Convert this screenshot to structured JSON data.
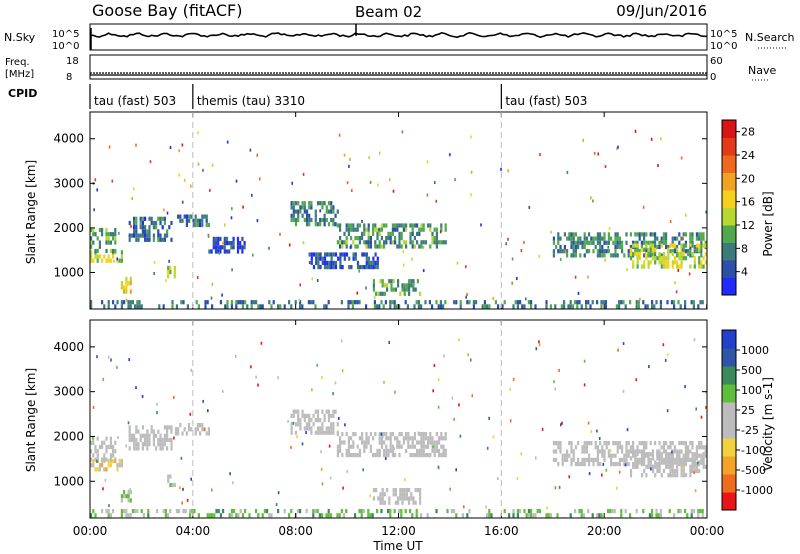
{
  "header": {
    "station": "Goose Bay (fitACF)",
    "beam": "Beam 02",
    "date": "09/Jun/2016"
  },
  "panels": {
    "nsky": {
      "label": "N.Sky",
      "ticks_left": [
        "10^5",
        "10^0"
      ],
      "ticks_right": [
        "10^5",
        "10^0"
      ],
      "right_label": "N.Search"
    },
    "freq": {
      "label_line1": "Freq.",
      "label_line2": "[MHz]",
      "ticks_left": [
        "18",
        "8"
      ],
      "ticks_right": [
        "60",
        "0"
      ],
      "right_label": "Nave"
    },
    "cpid": {
      "label": "CPID",
      "segments": [
        {
          "name": "tau (fast) 503",
          "start_hour": 0
        },
        {
          "name": "themis (tau) 3310",
          "start_hour": 4.0
        },
        {
          "name": "tau (fast) 503",
          "start_hour": 16.0
        }
      ]
    }
  },
  "x_axis": {
    "title": "Time UT",
    "ticks": [
      "00:00",
      "04:00",
      "08:00",
      "12:00",
      "16:00",
      "20:00",
      "00:00"
    ],
    "tick_hours": [
      0,
      4,
      8,
      12,
      16,
      20,
      24
    ],
    "mode_change_hours": [
      4.0,
      16.0
    ]
  },
  "colors": {
    "power": [
      "#1f2bff",
      "#2c4fa8",
      "#3d7a7c",
      "#52a84e",
      "#b7d732",
      "#f4d11c",
      "#f0a220",
      "#ed6a1c",
      "#e33a1a",
      "#d81414"
    ],
    "velocity": [
      "#e81616",
      "#ef6c1e",
      "#f3a428",
      "#f0d23c",
      "#bcbcbc",
      "#bcbcbc",
      "#5fbf3a",
      "#3a8a5a",
      "#2f55a8",
      "#2240c8"
    ]
  },
  "chart_data": [
    {
      "type": "heatmap",
      "name": "power",
      "ylabel": "Slant Range [km]",
      "yticks": [
        1000,
        2000,
        3000,
        4000
      ],
      "ylim": [
        180,
        4600
      ],
      "xlim_hours": [
        0,
        24
      ],
      "colorbar": {
        "label": "Power [dB]",
        "ticks": [
          4,
          8,
          12,
          16,
          20,
          24,
          28
        ],
        "range": [
          0,
          30
        ]
      },
      "echo_bands": [
        {
          "t0": 0.0,
          "t1": 1.2,
          "r0": 1250,
          "r1": 1500,
          "value": 14
        },
        {
          "t0": 0.0,
          "t1": 1.0,
          "r0": 1500,
          "r1": 2000,
          "value": 10
        },
        {
          "t0": 1.2,
          "t1": 1.6,
          "r0": 600,
          "r1": 900,
          "value": 16
        },
        {
          "t0": 3.0,
          "t1": 3.3,
          "r0": 950,
          "r1": 1150,
          "value": 14
        },
        {
          "t0": 1.5,
          "t1": 3.2,
          "r0": 1750,
          "r1": 2250,
          "value": 6
        },
        {
          "t0": 3.3,
          "t1": 4.6,
          "r0": 2100,
          "r1": 2300,
          "value": 6
        },
        {
          "t0": 4.6,
          "t1": 6.0,
          "r0": 1450,
          "r1": 1800,
          "value": 4
        },
        {
          "t0": 7.8,
          "t1": 9.6,
          "r0": 2050,
          "r1": 2600,
          "value": 8
        },
        {
          "t0": 9.6,
          "t1": 13.8,
          "r0": 1550,
          "r1": 2100,
          "value": 9
        },
        {
          "t0": 8.5,
          "t1": 11.2,
          "r0": 1150,
          "r1": 1450,
          "value": 5
        },
        {
          "t0": 11.0,
          "t1": 12.8,
          "r0": 550,
          "r1": 850,
          "value": 10
        },
        {
          "t0": 18.0,
          "t1": 24.0,
          "r0": 1350,
          "r1": 1900,
          "value": 8
        },
        {
          "t0": 21.0,
          "t1": 24.0,
          "r0": 1150,
          "r1": 1650,
          "value": 14
        },
        {
          "t0": 0.0,
          "t1": 24.0,
          "r0": 180,
          "r1": 380,
          "value": 7
        }
      ]
    },
    {
      "type": "heatmap",
      "name": "velocity",
      "ylabel": "Slant Range [km]",
      "yticks": [
        1000,
        2000,
        3000,
        4000
      ],
      "ylim": [
        180,
        4600
      ],
      "xlim_hours": [
        0,
        24
      ],
      "colorbar": {
        "label": "Velocity [m s-1]",
        "ticks": [
          -1000,
          -500,
          -100,
          -25,
          25,
          100,
          500,
          1000
        ],
        "range": [
          -1200,
          1200
        ]
      },
      "echo_bands": [
        {
          "t0": 0.0,
          "t1": 1.2,
          "r0": 1250,
          "r1": 1500,
          "value": -300
        },
        {
          "t0": 0.0,
          "t1": 1.0,
          "r0": 1500,
          "r1": 2000,
          "value": 0
        },
        {
          "t0": 1.2,
          "t1": 1.6,
          "r0": 600,
          "r1": 900,
          "value": 200
        },
        {
          "t0": 3.0,
          "t1": 3.3,
          "r0": 950,
          "r1": 1150,
          "value": 150
        },
        {
          "t0": 1.5,
          "t1": 3.2,
          "r0": 1750,
          "r1": 2250,
          "value": 0
        },
        {
          "t0": 3.3,
          "t1": 4.6,
          "r0": 2100,
          "r1": 2300,
          "value": 0
        },
        {
          "t0": 7.8,
          "t1": 9.6,
          "r0": 2050,
          "r1": 2600,
          "value": 0
        },
        {
          "t0": 9.6,
          "t1": 13.8,
          "r0": 1550,
          "r1": 2100,
          "value": 0
        },
        {
          "t0": 11.0,
          "t1": 12.8,
          "r0": 550,
          "r1": 850,
          "value": 0
        },
        {
          "t0": 18.0,
          "t1": 24.0,
          "r0": 1350,
          "r1": 1900,
          "value": 0
        },
        {
          "t0": 21.0,
          "t1": 24.0,
          "r0": 1150,
          "r1": 1650,
          "value": 0
        },
        {
          "t0": 0.0,
          "t1": 24.0,
          "r0": 180,
          "r1": 380,
          "value": 300
        }
      ]
    }
  ]
}
